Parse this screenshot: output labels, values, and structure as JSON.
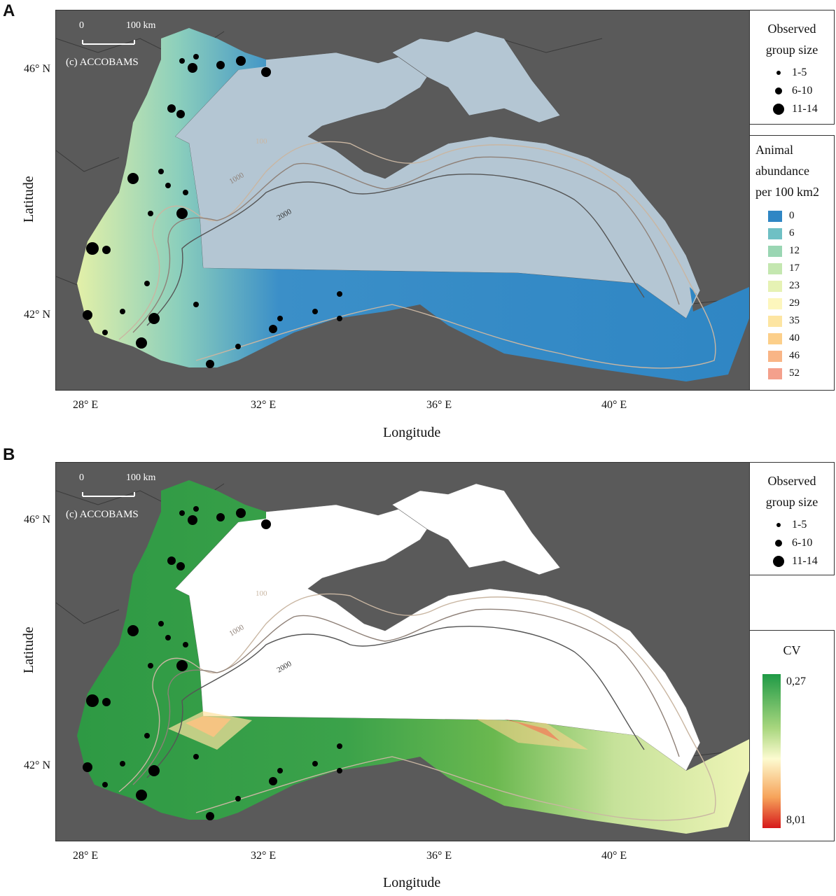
{
  "panels": [
    {
      "letter": "A",
      "scale_zero": "0",
      "scale_len": "100 km",
      "credit": "(c) ACCOBAMS",
      "ylabel": "Latitude",
      "xlabel": "Longitude",
      "lat_ticks": [
        "46° N",
        "42° N"
      ],
      "lon_ticks": [
        "28° E",
        "32° E",
        "36° E",
        "40° E"
      ],
      "legend_group_title_1": "Observed",
      "legend_group_title_2": "group size",
      "group_sizes": [
        "1-5",
        "6-10",
        "11-14"
      ],
      "abundance_title_1": "Animal",
      "abundance_title_2": "abundance",
      "abundance_title_3": "per 100 km2",
      "abundance_classes": [
        "0",
        "6",
        "12",
        "17",
        "23",
        "29",
        "35",
        "40",
        "46",
        "52"
      ],
      "abundance_colors": [
        "#2f86c4",
        "#6fc0c4",
        "#9ad6b3",
        "#c4e7b0",
        "#e6f2b4",
        "#fdf6bd",
        "#fde5a2",
        "#fccf8a",
        "#f9b586",
        "#f4a08c"
      ],
      "contour_labels": [
        "100",
        "1000",
        "2000"
      ]
    },
    {
      "letter": "B",
      "scale_zero": "0",
      "scale_len": "100 km",
      "credit": "(c) ACCOBAMS",
      "ylabel": "Latitude",
      "xlabel": "Longitude",
      "lat_ticks": [
        "46° N",
        "42° N"
      ],
      "lon_ticks": [
        "28° E",
        "32° E",
        "36° E",
        "40° E"
      ],
      "legend_group_title_1": "Observed",
      "legend_group_title_2": "group size",
      "group_sizes": [
        "1-5",
        "6-10",
        "11-14"
      ],
      "cv_title": "CV",
      "cv_max_label": "0,27",
      "cv_min_label": "8,01",
      "contour_labels": [
        "100",
        "1000",
        "2000"
      ]
    }
  ]
}
